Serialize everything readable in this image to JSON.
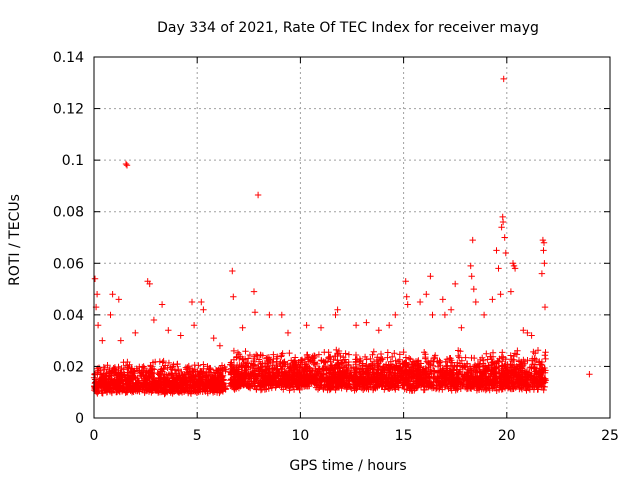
{
  "chart_data": {
    "type": "scatter",
    "title": "Day 334 of 2021, Rate Of TEC Index for receiver mayg",
    "xlabel": "GPS time / hours",
    "ylabel": "ROTI / TECUs",
    "xlim": [
      0,
      25
    ],
    "ylim": [
      0,
      0.14
    ],
    "x_ticks": [
      0,
      5,
      10,
      15,
      20,
      25
    ],
    "x_tick_labels": [
      "0",
      "5",
      "10",
      "15",
      "20",
      "25"
    ],
    "y_ticks": [
      0,
      0.02,
      0.04,
      0.06,
      0.08,
      0.1,
      0.12,
      0.14
    ],
    "y_tick_labels": [
      "0",
      "0.02",
      "0.04",
      "0.06",
      "0.08",
      "0.1",
      "0.12",
      "0.14"
    ],
    "grid": true,
    "marker": "+",
    "color": "#ff0000",
    "baseline_band": {
      "description": "dense cluster of points",
      "segments": [
        {
          "x_start": 0.0,
          "x_end": 6.4,
          "y_low": 0.004,
          "y_high": 0.025
        },
        {
          "x_start": 6.6,
          "x_end": 21.9,
          "y_low": 0.004,
          "y_high": 0.03
        }
      ]
    },
    "points": [
      {
        "x": 0.05,
        "y": 0.054
      },
      {
        "x": 0.1,
        "y": 0.043
      },
      {
        "x": 0.15,
        "y": 0.048
      },
      {
        "x": 0.2,
        "y": 0.036
      },
      {
        "x": 0.4,
        "y": 0.03
      },
      {
        "x": 0.8,
        "y": 0.04
      },
      {
        "x": 0.9,
        "y": 0.048
      },
      {
        "x": 1.2,
        "y": 0.046
      },
      {
        "x": 1.3,
        "y": 0.03
      },
      {
        "x": 1.55,
        "y": 0.0985
      },
      {
        "x": 1.6,
        "y": 0.098
      },
      {
        "x": 2.0,
        "y": 0.033
      },
      {
        "x": 2.6,
        "y": 0.053
      },
      {
        "x": 2.7,
        "y": 0.052
      },
      {
        "x": 2.9,
        "y": 0.038
      },
      {
        "x": 3.3,
        "y": 0.044
      },
      {
        "x": 3.6,
        "y": 0.034
      },
      {
        "x": 4.2,
        "y": 0.032
      },
      {
        "x": 4.75,
        "y": 0.045
      },
      {
        "x": 4.85,
        "y": 0.036
      },
      {
        "x": 5.2,
        "y": 0.045
      },
      {
        "x": 5.3,
        "y": 0.042
      },
      {
        "x": 5.8,
        "y": 0.031
      },
      {
        "x": 6.1,
        "y": 0.028
      },
      {
        "x": 6.7,
        "y": 0.057
      },
      {
        "x": 6.75,
        "y": 0.047
      },
      {
        "x": 7.2,
        "y": 0.035
      },
      {
        "x": 7.75,
        "y": 0.049
      },
      {
        "x": 7.8,
        "y": 0.041
      },
      {
        "x": 7.95,
        "y": 0.0865
      },
      {
        "x": 8.5,
        "y": 0.04
      },
      {
        "x": 9.1,
        "y": 0.04
      },
      {
        "x": 9.4,
        "y": 0.033
      },
      {
        "x": 10.3,
        "y": 0.036
      },
      {
        "x": 11.0,
        "y": 0.035
      },
      {
        "x": 11.7,
        "y": 0.04
      },
      {
        "x": 11.8,
        "y": 0.042
      },
      {
        "x": 12.7,
        "y": 0.036
      },
      {
        "x": 13.2,
        "y": 0.037
      },
      {
        "x": 13.8,
        "y": 0.034
      },
      {
        "x": 14.3,
        "y": 0.036
      },
      {
        "x": 14.6,
        "y": 0.04
      },
      {
        "x": 15.1,
        "y": 0.053
      },
      {
        "x": 15.15,
        "y": 0.047
      },
      {
        "x": 15.2,
        "y": 0.044
      },
      {
        "x": 15.8,
        "y": 0.045
      },
      {
        "x": 16.1,
        "y": 0.048
      },
      {
        "x": 16.3,
        "y": 0.055
      },
      {
        "x": 16.4,
        "y": 0.04
      },
      {
        "x": 16.9,
        "y": 0.046
      },
      {
        "x": 17.0,
        "y": 0.04
      },
      {
        "x": 17.3,
        "y": 0.042
      },
      {
        "x": 17.5,
        "y": 0.052
      },
      {
        "x": 17.8,
        "y": 0.035
      },
      {
        "x": 18.25,
        "y": 0.059
      },
      {
        "x": 18.3,
        "y": 0.055
      },
      {
        "x": 18.35,
        "y": 0.069
      },
      {
        "x": 18.4,
        "y": 0.05
      },
      {
        "x": 18.5,
        "y": 0.045
      },
      {
        "x": 18.9,
        "y": 0.04
      },
      {
        "x": 19.3,
        "y": 0.046
      },
      {
        "x": 19.5,
        "y": 0.065
      },
      {
        "x": 19.6,
        "y": 0.058
      },
      {
        "x": 19.7,
        "y": 0.048
      },
      {
        "x": 19.75,
        "y": 0.074
      },
      {
        "x": 19.8,
        "y": 0.078
      },
      {
        "x": 19.82,
        "y": 0.076
      },
      {
        "x": 19.85,
        "y": 0.1315
      },
      {
        "x": 19.9,
        "y": 0.07
      },
      {
        "x": 19.95,
        "y": 0.064
      },
      {
        "x": 20.2,
        "y": 0.049
      },
      {
        "x": 20.3,
        "y": 0.06
      },
      {
        "x": 20.35,
        "y": 0.059
      },
      {
        "x": 20.4,
        "y": 0.058
      },
      {
        "x": 20.8,
        "y": 0.034
      },
      {
        "x": 21.0,
        "y": 0.033
      },
      {
        "x": 21.2,
        "y": 0.032
      },
      {
        "x": 21.7,
        "y": 0.056
      },
      {
        "x": 21.75,
        "y": 0.069
      },
      {
        "x": 21.78,
        "y": 0.065
      },
      {
        "x": 21.8,
        "y": 0.068
      },
      {
        "x": 21.82,
        "y": 0.06
      },
      {
        "x": 21.85,
        "y": 0.043
      },
      {
        "x": 24.0,
        "y": 0.017
      }
    ]
  }
}
